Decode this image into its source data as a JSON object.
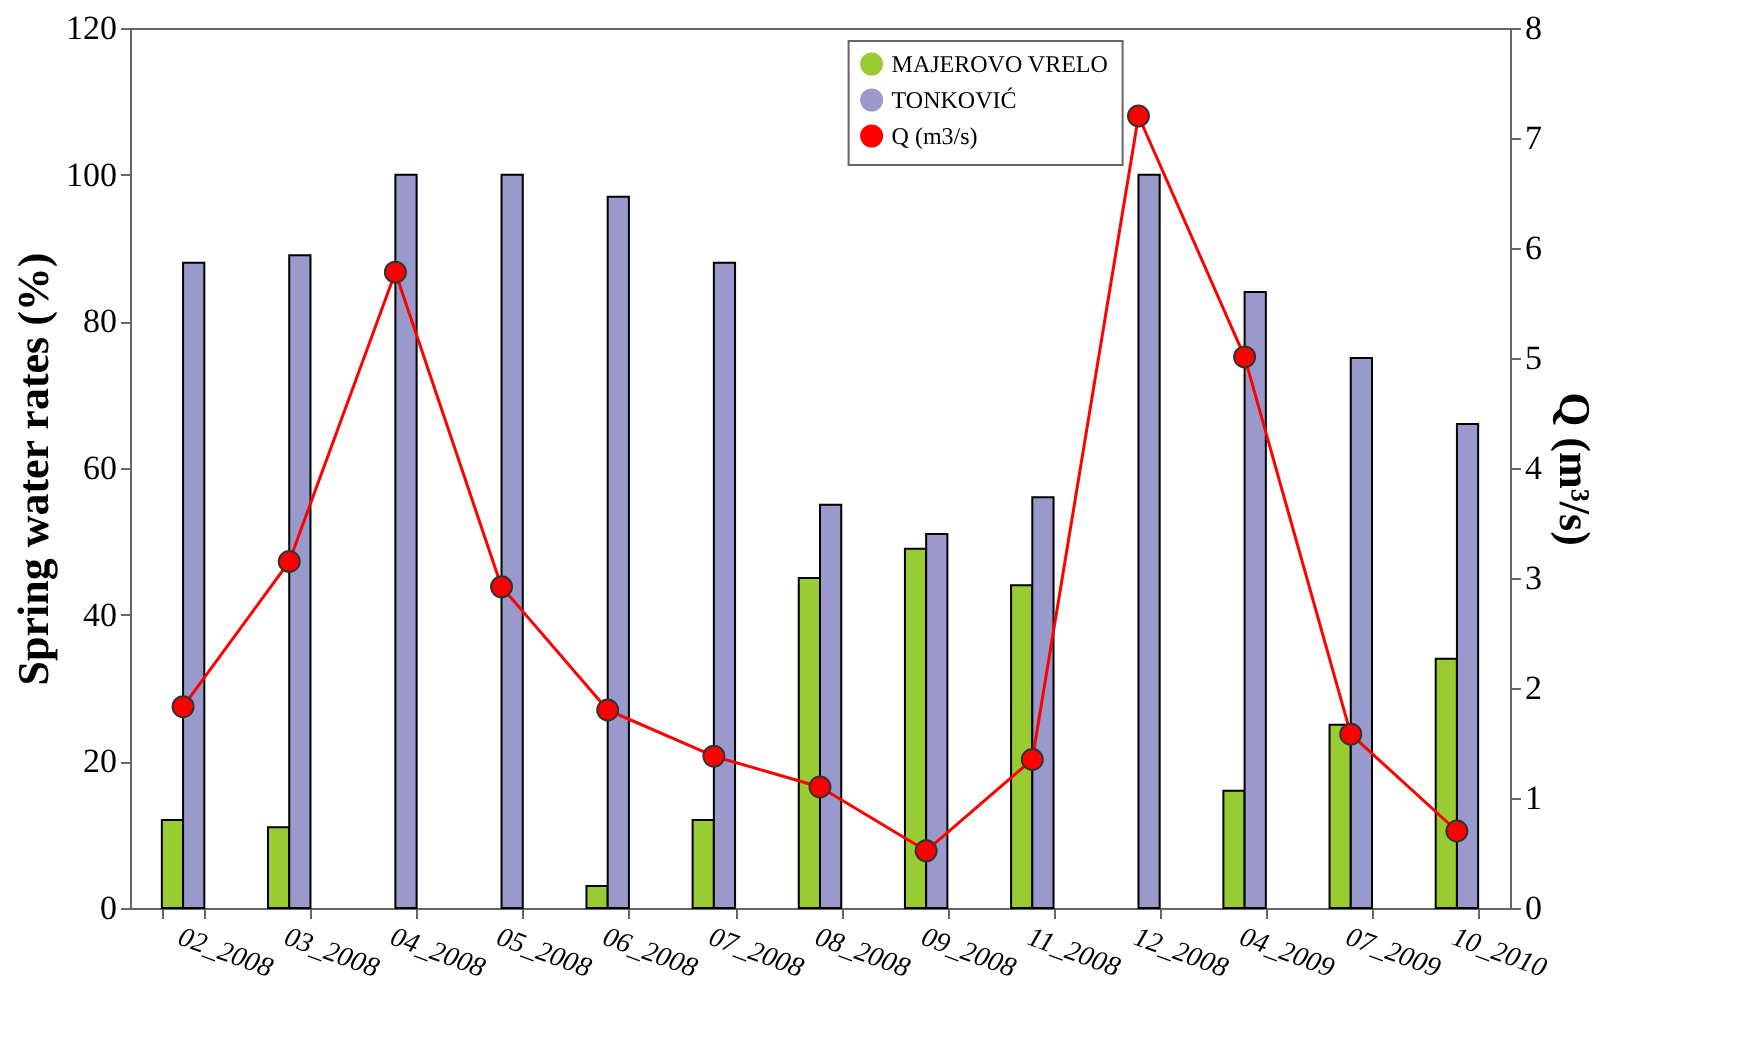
{
  "chart_data": {
    "type": "bar",
    "categories": [
      "02_2008",
      "03_2008",
      "04_2008",
      "05_2008",
      "06_2008",
      "07_2008",
      "08_2008",
      "09_2008",
      "11_2008",
      "12_2008",
      "04_2009",
      "07_2009",
      "10_2010"
    ],
    "series": [
      {
        "name": "MAJEROVO VRELO",
        "color": "#99cc33",
        "values": [
          12,
          11,
          null,
          null,
          3,
          12,
          45,
          49,
          44,
          null,
          16,
          25,
          34
        ]
      },
      {
        "name": "TONKOVIĆ",
        "color": "#9999cc",
        "values": [
          88,
          89,
          100,
          100,
          97,
          88,
          55,
          51,
          56,
          100,
          84,
          75,
          66
        ]
      },
      {
        "name": "Q (m3/s)",
        "type": "line",
        "axis": "y2",
        "color": "#ff0000",
        "values": [
          1.83,
          3.15,
          5.78,
          2.92,
          1.8,
          1.38,
          1.1,
          0.52,
          1.35,
          7.2,
          5.01,
          1.58,
          0.7
        ]
      }
    ],
    "ylabel": "Spring water rates (%)",
    "y2label": "Q (m³/s)",
    "ylim": [
      0,
      120
    ],
    "yticks": [
      0,
      20,
      40,
      60,
      80,
      100,
      120
    ],
    "y2lim": [
      0,
      8
    ],
    "y2ticks": [
      0,
      1,
      2,
      3,
      4,
      5,
      6,
      7,
      8
    ],
    "legend": "top",
    "marker": "circle",
    "grid": false
  }
}
